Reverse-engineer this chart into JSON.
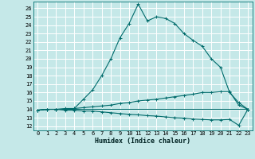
{
  "xlabel": "Humidex (Indice chaleur)",
  "background_color": "#c5e8e8",
  "grid_color": "#ffffff",
  "line_color": "#006b6b",
  "xlim": [
    -0.5,
    23.5
  ],
  "ylim": [
    11.5,
    26.8
  ],
  "x_ticks": [
    0,
    1,
    2,
    3,
    4,
    5,
    6,
    7,
    8,
    9,
    10,
    11,
    12,
    13,
    14,
    15,
    16,
    17,
    18,
    19,
    20,
    21,
    22,
    23
  ],
  "y_ticks": [
    12,
    13,
    14,
    15,
    16,
    17,
    18,
    19,
    20,
    21,
    22,
    23,
    24,
    25,
    26
  ],
  "line1_x": [
    0,
    1,
    2,
    3,
    4,
    5,
    6,
    7,
    8,
    9,
    10,
    11,
    12,
    13,
    14,
    15,
    16,
    17,
    18,
    19,
    20,
    21,
    22,
    23
  ],
  "line1_y": [
    13.9,
    14.0,
    14.0,
    14.0,
    14.1,
    15.2,
    16.3,
    18.0,
    20.0,
    22.5,
    24.2,
    26.5,
    24.5,
    25.0,
    24.8,
    24.2,
    23.0,
    22.2,
    21.5,
    20.0,
    19.0,
    16.0,
    14.8,
    14.0
  ],
  "line2_x": [
    0,
    1,
    2,
    3,
    4,
    5,
    6,
    7,
    8,
    9,
    10,
    11,
    12,
    13,
    14,
    15,
    16,
    17,
    18,
    19,
    20,
    21,
    22,
    23
  ],
  "line2_y": [
    13.9,
    14.0,
    14.0,
    14.1,
    14.1,
    14.2,
    14.3,
    14.4,
    14.5,
    14.7,
    14.8,
    15.0,
    15.1,
    15.2,
    15.35,
    15.5,
    15.65,
    15.8,
    16.0,
    16.0,
    16.1,
    16.1,
    14.5,
    14.0
  ],
  "line3_x": [
    0,
    1,
    2,
    3,
    4,
    5,
    6,
    7,
    8,
    9,
    10,
    11,
    12,
    13,
    14,
    15,
    16,
    17,
    18,
    19,
    20,
    21,
    22,
    23
  ],
  "line3_y": [
    13.9,
    14.0,
    14.0,
    13.9,
    13.9,
    13.8,
    13.8,
    13.7,
    13.6,
    13.5,
    13.4,
    13.35,
    13.25,
    13.2,
    13.1,
    13.0,
    12.95,
    12.85,
    12.8,
    12.75,
    12.75,
    12.8,
    12.1,
    14.0
  ],
  "line4_x": [
    0,
    1,
    2,
    3,
    4,
    5,
    6,
    7,
    8,
    9,
    10,
    11,
    12,
    13,
    14,
    15,
    16,
    17,
    18,
    19,
    20,
    21,
    22,
    23
  ],
  "line4_y": [
    13.9,
    14.0,
    14.0,
    14.0,
    14.0,
    14.0,
    14.0,
    14.0,
    14.0,
    14.0,
    14.0,
    14.0,
    14.0,
    14.0,
    14.0,
    14.0,
    14.0,
    14.0,
    14.0,
    14.0,
    14.0,
    14.0,
    14.0,
    14.0
  ]
}
